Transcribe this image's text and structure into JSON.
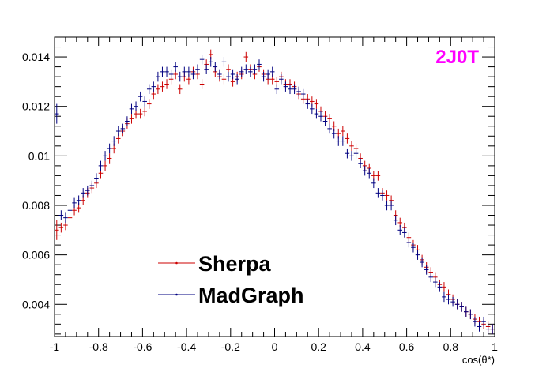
{
  "chart_data": {
    "type": "scatter",
    "tag": "2J0T",
    "tag_color": "#ff00ff",
    "xlabel": "cos(θ*)",
    "ylabel": "",
    "xlim": [
      -1,
      1
    ],
    "ylim": [
      0.0027,
      0.0148
    ],
    "x_ticks": [
      -1,
      -0.8,
      -0.6,
      -0.4,
      -0.2,
      0,
      0.2,
      0.4,
      0.6,
      0.8,
      1
    ],
    "x_tick_labels": [
      "-1",
      "-0.8",
      "-0.6",
      "-0.4",
      "-0.2",
      "0",
      "0.2",
      "0.4",
      "0.6",
      "0.8",
      "1"
    ],
    "y_ticks": [
      0.004,
      0.006,
      0.008,
      0.01,
      0.012,
      0.014
    ],
    "y_tick_labels": [
      "0.004",
      "0.006",
      "0.008",
      "0.01",
      "0.012",
      "0.014"
    ],
    "legend": {
      "position": "bottom-left"
    },
    "x": [
      -0.99,
      -0.97,
      -0.95,
      -0.93,
      -0.91,
      -0.89,
      -0.87,
      -0.85,
      -0.83,
      -0.81,
      -0.79,
      -0.77,
      -0.75,
      -0.73,
      -0.71,
      -0.69,
      -0.67,
      -0.65,
      -0.63,
      -0.61,
      -0.59,
      -0.57,
      -0.55,
      -0.53,
      -0.51,
      -0.49,
      -0.47,
      -0.45,
      -0.43,
      -0.41,
      -0.39,
      -0.37,
      -0.35,
      -0.33,
      -0.31,
      -0.29,
      -0.27,
      -0.25,
      -0.23,
      -0.21,
      -0.19,
      -0.17,
      -0.15,
      -0.13,
      -0.11,
      -0.09,
      -0.07,
      -0.05,
      -0.03,
      -0.01,
      0.01,
      0.03,
      0.05,
      0.07,
      0.09,
      0.11,
      0.13,
      0.15,
      0.17,
      0.19,
      0.21,
      0.23,
      0.25,
      0.27,
      0.29,
      0.31,
      0.33,
      0.35,
      0.37,
      0.39,
      0.41,
      0.43,
      0.45,
      0.47,
      0.49,
      0.51,
      0.53,
      0.55,
      0.57,
      0.59,
      0.61,
      0.63,
      0.65,
      0.67,
      0.69,
      0.71,
      0.73,
      0.75,
      0.77,
      0.79,
      0.81,
      0.83,
      0.85,
      0.87,
      0.89,
      0.91,
      0.93,
      0.95,
      0.97,
      0.99
    ],
    "series": [
      {
        "name": "Sherpa",
        "color": "#cc0000",
        "values": [
          0.007,
          0.0071,
          0.0072,
          0.0075,
          0.0078,
          0.0079,
          0.0082,
          0.0085,
          0.0087,
          0.0089,
          0.0093,
          0.0096,
          0.0099,
          0.0103,
          0.0107,
          0.011,
          0.0113,
          0.0115,
          0.0117,
          0.0117,
          0.0118,
          0.0121,
          0.0125,
          0.0127,
          0.0128,
          0.0129,
          0.0131,
          0.0133,
          0.0127,
          0.0132,
          0.0131,
          0.0134,
          0.0133,
          0.0129,
          0.0137,
          0.0141,
          0.0134,
          0.0132,
          0.0131,
          0.0135,
          0.013,
          0.0132,
          0.0133,
          0.014,
          0.0135,
          0.0133,
          0.0136,
          0.0133,
          0.0131,
          0.0131,
          0.013,
          0.0132,
          0.0129,
          0.0129,
          0.0128,
          0.0125,
          0.0123,
          0.0123,
          0.0122,
          0.0121,
          0.0118,
          0.0116,
          0.0115,
          0.0112,
          0.0109,
          0.011,
          0.0107,
          0.0104,
          0.0103,
          0.0099,
          0.0096,
          0.0095,
          0.0092,
          0.0092,
          0.0085,
          0.0084,
          0.0082,
          0.0076,
          0.0073,
          0.0071,
          0.0067,
          0.0064,
          0.0062,
          0.0058,
          0.0055,
          0.0053,
          0.0051,
          0.0048,
          0.0047,
          0.0044,
          0.0042,
          0.004,
          0.0039,
          0.0037,
          0.0036,
          0.0034,
          0.0033,
          0.0032,
          0.0031,
          0.003
        ],
        "errors": [
          0.0004,
          0.0002,
          0.0002,
          0.0002,
          0.0002,
          0.0002,
          0.0002,
          0.0002,
          0.0002,
          0.0002,
          0.0002,
          0.0002,
          0.0002,
          0.0002,
          0.0002,
          0.0002,
          0.0002,
          0.0002,
          0.0002,
          0.0002,
          0.0002,
          0.0002,
          0.0002,
          0.0002,
          0.0002,
          0.0002,
          0.0002,
          0.0002,
          0.0002,
          0.0002,
          0.0002,
          0.0002,
          0.0002,
          0.0002,
          0.0002,
          0.0002,
          0.0002,
          0.0002,
          0.0002,
          0.0002,
          0.0002,
          0.0002,
          0.0002,
          0.0002,
          0.0002,
          0.0002,
          0.0002,
          0.0002,
          0.0002,
          0.0002,
          0.0002,
          0.0002,
          0.0002,
          0.0002,
          0.0002,
          0.0002,
          0.0002,
          0.0002,
          0.0002,
          0.0002,
          0.0002,
          0.0002,
          0.0002,
          0.0002,
          0.0002,
          0.0002,
          0.0002,
          0.0002,
          0.0002,
          0.0002,
          0.0002,
          0.0002,
          0.0002,
          0.0002,
          0.0002,
          0.0002,
          0.0002,
          0.0002,
          0.0002,
          0.0002,
          0.0002,
          0.0002,
          0.0002,
          0.0002,
          0.0002,
          0.0002,
          0.0002,
          0.0002,
          0.0002,
          0.0002,
          0.0002,
          0.0002,
          0.0002,
          0.0002,
          0.0002,
          0.0002,
          0.0002,
          0.0002,
          0.0002,
          0.0002
        ]
      },
      {
        "name": "MadGraph",
        "color": "#000080",
        "values": [
          0.0117,
          0.0076,
          0.0075,
          0.0078,
          0.0081,
          0.0082,
          0.0085,
          0.0086,
          0.0088,
          0.0091,
          0.0096,
          0.01,
          0.0103,
          0.0106,
          0.011,
          0.0111,
          0.0114,
          0.0119,
          0.012,
          0.0124,
          0.0122,
          0.0127,
          0.0128,
          0.0132,
          0.0134,
          0.0134,
          0.0133,
          0.0136,
          0.0132,
          0.0134,
          0.0134,
          0.0133,
          0.0135,
          0.0139,
          0.0135,
          0.0138,
          0.0136,
          0.0133,
          0.0138,
          0.0132,
          0.0133,
          0.0131,
          0.0134,
          0.0135,
          0.0134,
          0.0135,
          0.0137,
          0.0132,
          0.0133,
          0.0134,
          0.0127,
          0.0131,
          0.0128,
          0.0127,
          0.0127,
          0.0126,
          0.0125,
          0.0121,
          0.0119,
          0.0117,
          0.0116,
          0.0114,
          0.0111,
          0.0109,
          0.0106,
          0.0106,
          0.0101,
          0.01,
          0.0101,
          0.0097,
          0.0094,
          0.0093,
          0.0089,
          0.0085,
          0.0084,
          0.008,
          0.008,
          0.0074,
          0.007,
          0.0069,
          0.0065,
          0.0063,
          0.006,
          0.0057,
          0.0054,
          0.0051,
          0.0049,
          0.0047,
          0.0043,
          0.0042,
          0.0041,
          0.004,
          0.0039,
          0.0037,
          0.0036,
          0.0033,
          0.0031,
          0.0033,
          0.003,
          0.003
        ],
        "errors": [
          0.0004,
          0.0002,
          0.0002,
          0.0002,
          0.0002,
          0.0002,
          0.0002,
          0.0002,
          0.0002,
          0.0002,
          0.0002,
          0.0002,
          0.0002,
          0.0002,
          0.0002,
          0.0002,
          0.0002,
          0.0002,
          0.0002,
          0.0002,
          0.0002,
          0.0002,
          0.0002,
          0.0002,
          0.0002,
          0.0002,
          0.0002,
          0.0002,
          0.0002,
          0.0002,
          0.0002,
          0.0002,
          0.0002,
          0.0002,
          0.0002,
          0.0002,
          0.0002,
          0.0002,
          0.0002,
          0.0002,
          0.0002,
          0.0002,
          0.0002,
          0.0002,
          0.0002,
          0.0002,
          0.0002,
          0.0002,
          0.0002,
          0.0002,
          0.0002,
          0.0002,
          0.0002,
          0.0002,
          0.0002,
          0.0002,
          0.0002,
          0.0002,
          0.0002,
          0.0002,
          0.0002,
          0.0002,
          0.0002,
          0.0002,
          0.0002,
          0.0002,
          0.0002,
          0.0002,
          0.0002,
          0.0002,
          0.0002,
          0.0002,
          0.0002,
          0.0002,
          0.0002,
          0.0002,
          0.0002,
          0.0002,
          0.0002,
          0.0002,
          0.0002,
          0.0002,
          0.0002,
          0.0002,
          0.0002,
          0.0002,
          0.0002,
          0.0002,
          0.0002,
          0.0002,
          0.0002,
          0.0002,
          0.0002,
          0.0002,
          0.0002,
          0.0002,
          0.0002,
          0.0002,
          0.0002,
          0.0002
        ]
      }
    ]
  }
}
